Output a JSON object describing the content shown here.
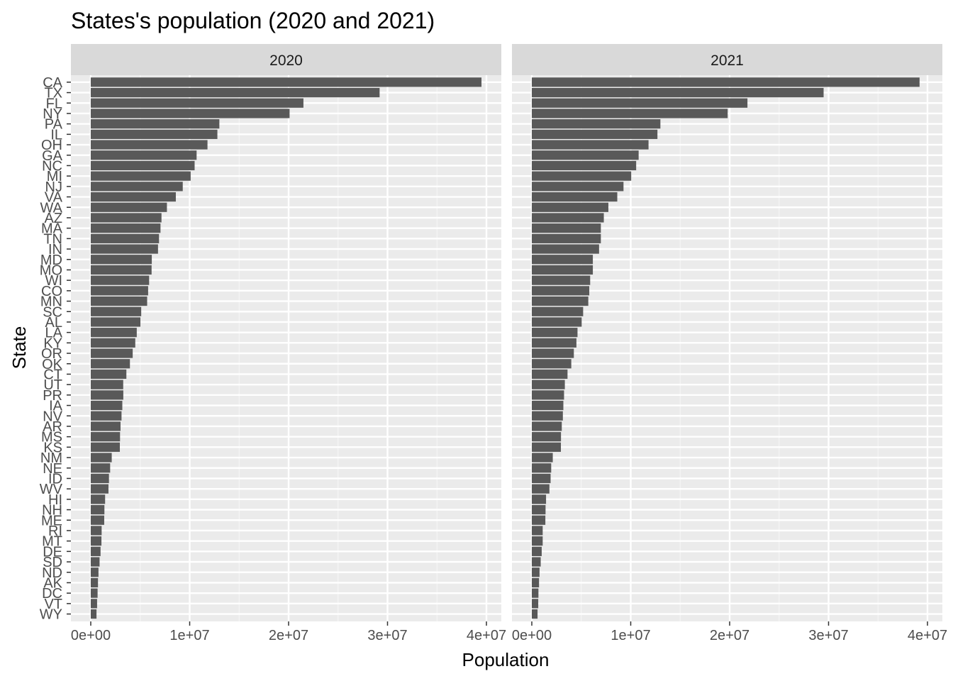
{
  "chart_data": {
    "type": "bar",
    "orientation": "horizontal",
    "title": "States's population (2020 and 2021)",
    "xlabel": "Population",
    "ylabel": "State",
    "xlim": [
      0,
      40000000
    ],
    "x_ticks": [
      0,
      10000000,
      20000000,
      30000000,
      40000000
    ],
    "x_tick_labels": [
      "0e+00",
      "1e+07",
      "2e+07",
      "3e+07",
      "4e+07"
    ],
    "grid": true,
    "categories": [
      "CA",
      "TX",
      "FL",
      "NY",
      "PA",
      "IL",
      "OH",
      "GA",
      "NC",
      "MI",
      "NJ",
      "VA",
      "WA",
      "AZ",
      "MA",
      "TN",
      "IN",
      "MD",
      "MO",
      "WI",
      "CO",
      "MN",
      "SC",
      "AL",
      "LA",
      "KY",
      "OR",
      "OK",
      "CT",
      "UT",
      "PR",
      "IA",
      "NV",
      "AR",
      "MS",
      "KS",
      "NM",
      "NE",
      "ID",
      "WV",
      "HI",
      "NH",
      "ME",
      "RI",
      "MT",
      "DE",
      "SD",
      "ND",
      "AK",
      "DC",
      "VT",
      "WY"
    ],
    "facets": [
      {
        "label": "2020",
        "values": [
          39500000,
          29200000,
          21500000,
          20100000,
          13000000,
          12800000,
          11800000,
          10700000,
          10500000,
          10100000,
          9300000,
          8600000,
          7700000,
          7150000,
          7050000,
          6900000,
          6800000,
          6170000,
          6150000,
          5900000,
          5800000,
          5700000,
          5100000,
          5020000,
          4650000,
          4500000,
          4240000,
          3960000,
          3600000,
          3280000,
          3290000,
          3190000,
          3110000,
          3010000,
          2960000,
          2940000,
          2120000,
          1960000,
          1840000,
          1790000,
          1450000,
          1380000,
          1360000,
          1100000,
          1080000,
          990000,
          890000,
          780000,
          730000,
          690000,
          640000,
          580000
        ]
      },
      {
        "label": "2021",
        "values": [
          39200000,
          29500000,
          21800000,
          19800000,
          13000000,
          12700000,
          11800000,
          10800000,
          10550000,
          10050000,
          9270000,
          8640000,
          7740000,
          7280000,
          6980000,
          6980000,
          6800000,
          6170000,
          6170000,
          5900000,
          5810000,
          5710000,
          5190000,
          5040000,
          4620000,
          4510000,
          4250000,
          3990000,
          3610000,
          3340000,
          3260000,
          3190000,
          3140000,
          3030000,
          2950000,
          2940000,
          2120000,
          1960000,
          1900000,
          1780000,
          1440000,
          1390000,
          1370000,
          1100000,
          1100000,
          1000000,
          900000,
          780000,
          730000,
          670000,
          650000,
          580000
        ]
      }
    ]
  }
}
